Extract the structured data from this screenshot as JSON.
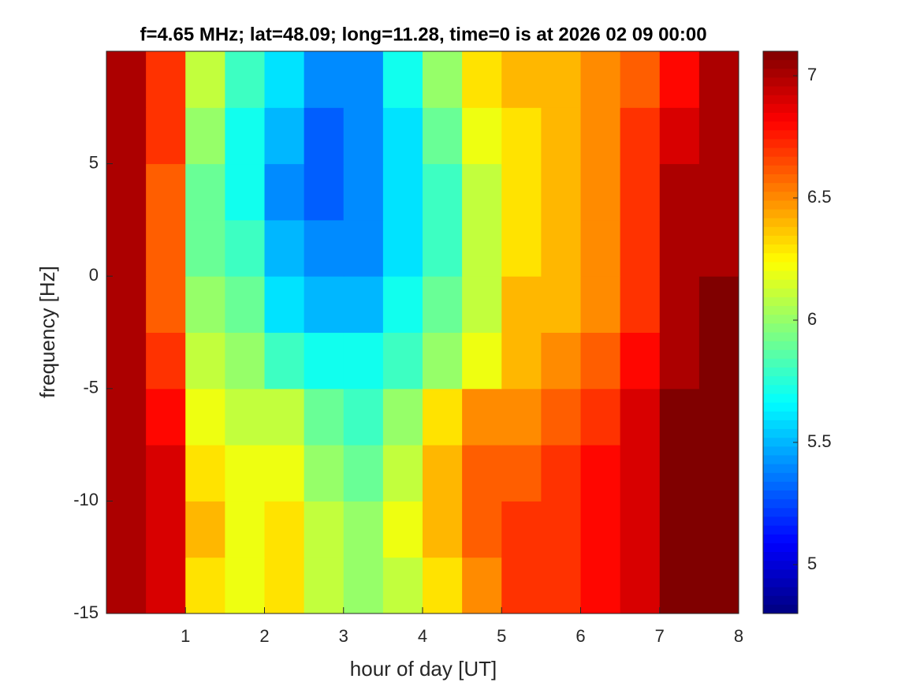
{
  "chart_data": {
    "type": "heatmap",
    "title": "f=4.65 MHz;  lat=48.09; long=11.28, time=0 is at 2026 02 09 00:00",
    "x_label": "hour of day [UT]",
    "y_label": "frequency [Hz]",
    "colormap": "jet",
    "xlim": [
      0,
      8
    ],
    "ylim": [
      -15,
      10
    ],
    "clim": [
      4.8,
      7.1
    ],
    "xticks": [
      1,
      2,
      3,
      4,
      5,
      6,
      7,
      8
    ],
    "yticks": [
      -15,
      -10,
      -5,
      0,
      5
    ],
    "cticks": [
      5,
      5.5,
      6,
      6.5,
      7
    ],
    "x": [
      0.25,
      0.75,
      1.25,
      1.75,
      2.25,
      2.75,
      3.25,
      3.75,
      4.25,
      4.75,
      5.25,
      5.75,
      6.25,
      6.75,
      7.25,
      7.75
    ],
    "y": [
      -13.75,
      -11.25,
      -8.75,
      -6.25,
      -3.75,
      -1.25,
      1.25,
      3.75,
      6.25,
      8.75
    ],
    "z": [
      [
        7.0,
        6.9,
        6.3,
        6.2,
        6.3,
        6.1,
        6.0,
        6.1,
        6.3,
        6.5,
        6.7,
        6.7,
        6.8,
        6.9,
        7.1,
        7.1
      ],
      [
        7.0,
        6.9,
        6.4,
        6.2,
        6.3,
        6.1,
        6.0,
        6.2,
        6.4,
        6.6,
        6.7,
        6.7,
        6.8,
        6.9,
        7.1,
        7.1
      ],
      [
        7.0,
        6.9,
        6.3,
        6.2,
        6.2,
        6.0,
        5.9,
        6.1,
        6.4,
        6.6,
        6.6,
        6.7,
        6.8,
        6.9,
        7.1,
        7.1
      ],
      [
        7.0,
        6.8,
        6.2,
        6.1,
        6.1,
        5.9,
        5.8,
        6.0,
        6.3,
        6.5,
        6.5,
        6.6,
        6.7,
        6.9,
        7.1,
        7.1
      ],
      [
        7.0,
        6.7,
        6.1,
        6.0,
        5.8,
        5.7,
        5.7,
        5.8,
        6.0,
        6.2,
        6.4,
        6.5,
        6.6,
        6.8,
        7.0,
        7.1
      ],
      [
        7.0,
        6.6,
        6.0,
        5.9,
        5.6,
        5.5,
        5.5,
        5.7,
        5.9,
        6.1,
        6.4,
        6.4,
        6.5,
        6.7,
        7.0,
        7.1
      ],
      [
        7.0,
        6.6,
        5.9,
        5.8,
        5.5,
        5.4,
        5.4,
        5.6,
        5.8,
        6.1,
        6.3,
        6.4,
        6.5,
        6.7,
        7.0,
        7.0
      ],
      [
        7.0,
        6.6,
        5.9,
        5.7,
        5.4,
        5.3,
        5.4,
        5.6,
        5.8,
        6.1,
        6.3,
        6.4,
        6.5,
        6.7,
        7.0,
        7.0
      ],
      [
        7.0,
        6.7,
        6.0,
        5.7,
        5.5,
        5.3,
        5.4,
        5.6,
        5.9,
        6.2,
        6.3,
        6.4,
        6.5,
        6.7,
        6.9,
        7.0
      ],
      [
        7.0,
        6.7,
        6.1,
        5.8,
        5.6,
        5.4,
        5.4,
        5.7,
        6.0,
        6.3,
        6.4,
        6.4,
        6.5,
        6.6,
        6.8,
        7.0
      ]
    ]
  }
}
